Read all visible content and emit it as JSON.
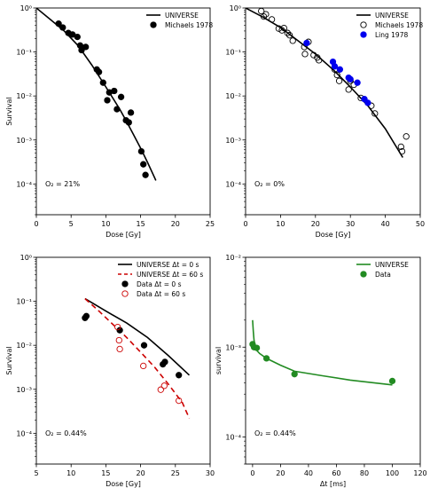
{
  "chart_data": [
    {
      "type": "scatter",
      "panel": "top-left",
      "xlabel": "Dose [Gy]",
      "ylabel": "Survival",
      "xlim": [
        0,
        25
      ],
      "ylim": [
        2e-05,
        1
      ],
      "yscale": "log",
      "xticks": [
        0,
        5,
        10,
        15,
        20,
        25
      ],
      "yticks": [
        1,
        0.1,
        0.01,
        0.001,
        0.0001
      ],
      "ytick_labels": [
        "10⁰",
        "10⁻¹",
        "10⁻²",
        "10⁻³",
        "10⁻⁴"
      ],
      "annotation": "O₂ = 21%",
      "legend_position": "top-right",
      "series": [
        {
          "name": "UNIVERSE",
          "kind": "line",
          "color": "#000000",
          "dash": "",
          "x": [
            0,
            2,
            4,
            6,
            8,
            10,
            11,
            12,
            13,
            14,
            15,
            16,
            17,
            17.2
          ],
          "y": [
            1.0,
            0.55,
            0.3,
            0.14,
            0.05,
            0.016,
            0.009,
            0.005,
            0.0026,
            0.0013,
            0.00065,
            0.00031,
            0.00014,
            0.00012
          ]
        },
        {
          "name": "Michaels 1978",
          "kind": "points",
          "marker": "filled",
          "color": "#000000",
          "x": [
            3.2,
            3.8,
            4.6,
            5.2,
            5.9,
            6.3,
            6.5,
            7.1,
            8.7,
            9.0,
            9.6,
            10.2,
            10.5,
            11.2,
            11.6,
            12.2,
            12.9,
            13.3,
            13.6,
            15.1,
            15.4,
            15.7
          ],
          "y": [
            0.44,
            0.36,
            0.27,
            0.25,
            0.22,
            0.14,
            0.11,
            0.13,
            0.04,
            0.035,
            0.02,
            0.008,
            0.012,
            0.013,
            0.005,
            0.0095,
            0.0028,
            0.0025,
            0.0042,
            0.00055,
            0.00028,
            0.00016
          ]
        }
      ]
    },
    {
      "type": "scatter",
      "panel": "top-right",
      "xlabel": "Dose [Gy]",
      "ylabel": "",
      "xlim": [
        0,
        50
      ],
      "ylim": [
        2e-05,
        1
      ],
      "yscale": "log",
      "xticks": [
        0,
        10,
        20,
        30,
        40,
        50
      ],
      "yticks": [
        1,
        0.1,
        0.01,
        0.001,
        0.0001
      ],
      "ytick_labels": [
        "10⁰",
        "10⁻¹",
        "10⁻²",
        "10⁻³",
        "10⁻⁴"
      ],
      "annotation": "O₂ = 0%",
      "legend_position": "top-right",
      "series": [
        {
          "name": "UNIVERSE",
          "kind": "line",
          "color": "#000000",
          "dash": "",
          "x": [
            0,
            5,
            10,
            15,
            20,
            25,
            30,
            35,
            40,
            45
          ],
          "y": [
            1.0,
            0.62,
            0.36,
            0.18,
            0.09,
            0.04,
            0.016,
            0.006,
            0.0018,
            0.0004
          ]
        },
        {
          "name": "Michaels 1978",
          "kind": "points",
          "marker": "open",
          "color": "#000000",
          "x": [
            4.5,
            5.2,
            5.8,
            7.5,
            9.5,
            10.4,
            11.0,
            12.0,
            12.6,
            13.5,
            16.8,
            17.0,
            18.0,
            19.5,
            20.5,
            21.0,
            25.5,
            26.2,
            26.8,
            29.5,
            30.0,
            31.0,
            33.0,
            36.0,
            37.0,
            44.5,
            44.8,
            46.0
          ],
          "y": [
            0.85,
            0.64,
            0.72,
            0.55,
            0.34,
            0.31,
            0.35,
            0.27,
            0.24,
            0.18,
            0.13,
            0.09,
            0.17,
            0.085,
            0.075,
            0.065,
            0.04,
            0.03,
            0.022,
            0.014,
            0.022,
            0.018,
            0.009,
            0.006,
            0.004,
            0.0007,
            0.00055,
            0.0012
          ]
        },
        {
          "name": "Ling 1978",
          "kind": "points",
          "marker": "filled",
          "color": "#0000ee",
          "x": [
            17.5,
            25.0,
            25.5,
            27.0,
            29.5,
            30.0,
            32.0,
            34.0,
            35.0
          ],
          "y": [
            0.16,
            0.06,
            0.047,
            0.04,
            0.026,
            0.024,
            0.02,
            0.0085,
            0.007
          ]
        }
      ]
    },
    {
      "type": "scatter",
      "panel": "bottom-left",
      "xlabel": "Dose [Gy]",
      "ylabel": "Survival",
      "xlim": [
        5,
        30
      ],
      "ylim": [
        2e-05,
        1
      ],
      "yscale": "log",
      "xticks": [
        5,
        10,
        15,
        20,
        25,
        30
      ],
      "yticks": [
        1,
        0.1,
        0.01,
        0.001,
        0.0001
      ],
      "ytick_labels": [
        "10⁰",
        "10⁻¹",
        "10⁻²",
        "10⁻³",
        "10⁻⁴"
      ],
      "annotation": "O₂ = 0.44%",
      "legend_position": "top-right",
      "series": [
        {
          "name": "UNIVERSE Δt = 0 s",
          "kind": "line",
          "color": "#000000",
          "dash": "",
          "x": [
            12,
            15,
            18,
            21,
            24,
            27
          ],
          "y": [
            0.115,
            0.06,
            0.032,
            0.015,
            0.0058,
            0.0021
          ]
        },
        {
          "name": "UNIVERSE Δt = 60 s",
          "kind": "line",
          "color": "#cc0000",
          "dash": "6,4",
          "x": [
            12,
            14,
            16,
            18,
            20,
            22,
            24,
            26,
            27
          ],
          "y": [
            0.115,
            0.06,
            0.03,
            0.015,
            0.007,
            0.0032,
            0.0013,
            0.0005,
            0.00022
          ]
        },
        {
          "name": "Data Δt = 0 s",
          "kind": "points",
          "marker": "filled",
          "color": "#000000",
          "x": [
            12.0,
            12.2,
            17.0,
            20.5,
            23.2,
            23.5,
            25.5
          ],
          "y": [
            0.042,
            0.046,
            0.022,
            0.01,
            0.0037,
            0.0042,
            0.0021
          ]
        },
        {
          "name": "Data Δt = 60 s",
          "kind": "points",
          "marker": "open",
          "color": "#cc0000",
          "x": [
            16.7,
            16.9,
            17.0,
            20.4,
            22.9,
            23.4,
            25.5
          ],
          "y": [
            0.026,
            0.013,
            0.0082,
            0.0034,
            0.00098,
            0.0012,
            0.00055
          ]
        }
      ]
    },
    {
      "type": "scatter",
      "panel": "bottom-right",
      "xlabel": "Δt [ms]",
      "ylabel": "survival",
      "xlim": [
        -5,
        120
      ],
      "ylim": [
        5e-05,
        0.01
      ],
      "yscale": "log",
      "xticks": [
        0,
        20,
        40,
        60,
        80,
        100,
        120
      ],
      "yticks": [
        0.01,
        0.001,
        0.0001
      ],
      "ytick_labels": [
        "10⁻²",
        "10⁻³",
        "10⁻⁴"
      ],
      "annotation": "O₂ = 0.44%",
      "legend_position": "top-right",
      "series": [
        {
          "name": "UNIVERSE",
          "kind": "line",
          "color": "#228b22",
          "dash": "",
          "x": [
            0,
            0.5,
            1,
            2,
            3,
            5,
            10,
            20,
            30,
            50,
            70,
            100
          ],
          "y": [
            0.002,
            0.0015,
            0.0012,
            0.001,
            0.00092,
            0.00085,
            0.00075,
            0.00063,
            0.00054,
            0.00048,
            0.00043,
            0.00038
          ]
        },
        {
          "name": "Data",
          "kind": "points",
          "marker": "filled",
          "color": "#228b22",
          "x": [
            0,
            1,
            3,
            10,
            30,
            100
          ],
          "y": [
            0.00108,
            0.001,
            0.00098,
            0.00075,
            0.0005,
            0.00042
          ]
        }
      ]
    }
  ]
}
